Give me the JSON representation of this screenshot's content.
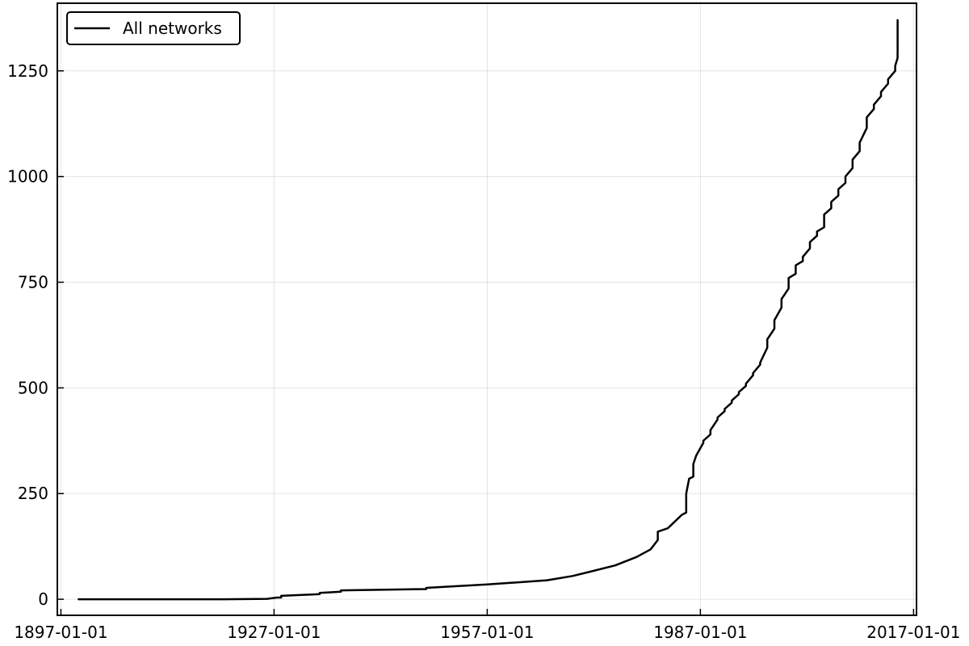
{
  "chart_data": {
    "type": "line",
    "title": "",
    "xlabel": "",
    "ylabel": "",
    "x_axis_kind": "date",
    "xlim": [
      "1896-07-01",
      "2017-06-01"
    ],
    "ylim": [
      -38,
      1410
    ],
    "grid": true,
    "legend_position": "top-left",
    "x_ticks": [
      {
        "value": "1897-01-01",
        "label": "1897-01-01"
      },
      {
        "value": "1927-01-01",
        "label": "1927-01-01"
      },
      {
        "value": "1957-01-01",
        "label": "1957-01-01"
      },
      {
        "value": "1987-01-01",
        "label": "1987-01-01"
      },
      {
        "value": "2017-01-01",
        "label": "2017-01-01"
      }
    ],
    "y_ticks": [
      {
        "value": 0,
        "label": "0"
      },
      {
        "value": 250,
        "label": "250"
      },
      {
        "value": 500,
        "label": "500"
      },
      {
        "value": 750,
        "label": "750"
      },
      {
        "value": 1000,
        "label": "1000"
      },
      {
        "value": 1250,
        "label": "1250"
      }
    ],
    "series": [
      {
        "name": "All networks",
        "color": "#000000",
        "x": [
          "1899-07-01",
          "1910-01-01",
          "1920-01-01",
          "1926-01-01",
          "1927-06-01",
          "1928-01-01",
          "1928-01-02",
          "1933-06-01",
          "1933-06-02",
          "1936-06-01",
          "1936-06-02",
          "1948-06-01",
          "1948-06-02",
          "1957-01-01",
          "1965-06-01",
          "1969-01-01",
          "1971-06-01",
          "1975-01-01",
          "1978-01-01",
          "1980-01-01",
          "1981-01-01",
          "1981-01-02",
          "1982-06-01",
          "1984-06-01",
          "1985-01-01",
          "1985-01-02",
          "1985-06-01",
          "1986-01-01",
          "1986-01-02",
          "1986-06-01",
          "1987-06-01",
          "1987-06-02",
          "1988-06-01",
          "1988-06-02",
          "1989-06-01",
          "1989-06-02",
          "1990-06-01",
          "1990-06-02",
          "1991-06-01",
          "1991-06-02",
          "1992-06-01",
          "1992-06-02",
          "1993-06-01",
          "1993-06-02",
          "1994-06-01",
          "1994-06-02",
          "1995-06-01",
          "1995-06-02",
          "1996-06-01",
          "1996-06-02",
          "1997-06-01",
          "1997-06-02",
          "1998-06-01",
          "1998-06-02",
          "1999-06-01",
          "1999-06-02",
          "2000-06-01",
          "2000-06-02",
          "2001-06-01",
          "2001-06-02",
          "2002-06-01",
          "2002-06-02",
          "2003-06-01",
          "2003-06-02",
          "2004-06-01",
          "2004-06-02",
          "2005-06-01",
          "2005-06-02",
          "2006-06-01",
          "2006-06-02",
          "2007-06-01",
          "2007-06-02",
          "2008-06-01",
          "2008-06-02",
          "2009-06-01",
          "2009-06-02",
          "2010-06-01",
          "2010-06-02",
          "2011-06-01",
          "2011-06-02",
          "2012-06-01",
          "2012-06-02",
          "2013-06-01",
          "2013-06-02",
          "2014-06-01",
          "2014-06-02",
          "2014-10-01",
          "2014-10-02",
          "2014-10-03"
        ],
        "values": [
          0,
          0,
          0,
          1,
          4,
          4,
          8,
          12,
          15,
          18,
          21,
          24,
          27,
          35,
          45,
          55,
          65,
          80,
          100,
          118,
          140,
          160,
          168,
          200,
          205,
          250,
          285,
          290,
          320,
          340,
          370,
          375,
          390,
          400,
          425,
          430,
          445,
          450,
          465,
          470,
          485,
          490,
          505,
          510,
          530,
          535,
          555,
          560,
          595,
          615,
          640,
          660,
          690,
          710,
          735,
          760,
          770,
          790,
          800,
          810,
          830,
          845,
          860,
          870,
          880,
          910,
          925,
          940,
          955,
          970,
          985,
          1000,
          1020,
          1040,
          1060,
          1080,
          1115,
          1140,
          1160,
          1170,
          1190,
          1200,
          1220,
          1230,
          1250,
          1262,
          1280,
          1300,
          1370
        ]
      }
    ]
  }
}
